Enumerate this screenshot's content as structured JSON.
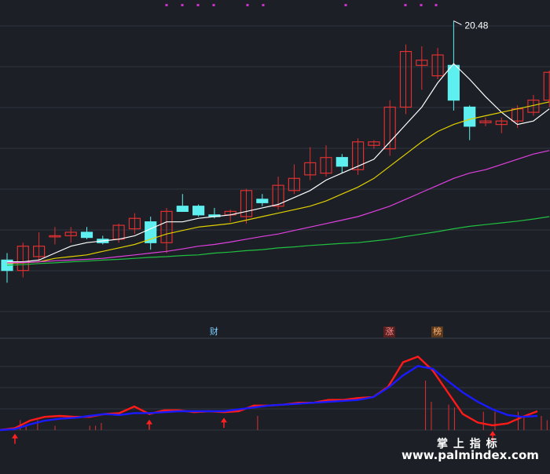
{
  "chart_data": [
    {
      "type": "candlestick",
      "title": "",
      "xlabel": "",
      "ylabel": "",
      "ylim": [
        11.6,
        20.9
      ],
      "grid": true,
      "max_label": "20.48",
      "candles": [
        {
          "o": 13.6,
          "h": 13.8,
          "l": 12.95,
          "c": 13.3
        },
        {
          "o": 13.3,
          "h": 14.1,
          "l": 13.1,
          "c": 14.0
        },
        {
          "o": 13.7,
          "h": 14.4,
          "l": 13.55,
          "c": 14.0
        },
        {
          "o": 14.3,
          "h": 14.55,
          "l": 14.05,
          "c": 14.3
        },
        {
          "o": 14.3,
          "h": 14.55,
          "l": 14.1,
          "c": 14.4
        },
        {
          "o": 14.4,
          "h": 14.55,
          "l": 14.2,
          "c": 14.25
        },
        {
          "o": 14.2,
          "h": 14.3,
          "l": 14.05,
          "c": 14.1
        },
        {
          "o": 14.2,
          "h": 14.65,
          "l": 14.1,
          "c": 14.6
        },
        {
          "o": 14.5,
          "h": 14.95,
          "l": 14.35,
          "c": 14.8
        },
        {
          "o": 14.7,
          "h": 14.85,
          "l": 13.9,
          "c": 14.1
        },
        {
          "o": 14.1,
          "h": 15.1,
          "l": 13.8,
          "c": 15.0
        },
        {
          "o": 15.15,
          "h": 15.5,
          "l": 15.0,
          "c": 15.0
        },
        {
          "o": 15.15,
          "h": 15.2,
          "l": 14.85,
          "c": 14.9
        },
        {
          "o": 14.9,
          "h": 15.1,
          "l": 14.8,
          "c": 14.85
        },
        {
          "o": 14.9,
          "h": 15.05,
          "l": 14.7,
          "c": 15.0
        },
        {
          "o": 14.85,
          "h": 15.65,
          "l": 14.65,
          "c": 15.6
        },
        {
          "o": 15.35,
          "h": 15.5,
          "l": 15.15,
          "c": 15.25
        },
        {
          "o": 15.15,
          "h": 16.0,
          "l": 15.05,
          "c": 15.75
        },
        {
          "o": 15.6,
          "h": 16.35,
          "l": 15.5,
          "c": 15.95
        },
        {
          "o": 16.05,
          "h": 16.85,
          "l": 15.9,
          "c": 16.4
        },
        {
          "o": 16.1,
          "h": 16.9,
          "l": 16.0,
          "c": 16.55
        },
        {
          "o": 16.55,
          "h": 16.65,
          "l": 16.1,
          "c": 16.3
        },
        {
          "o": 16.2,
          "h": 17.1,
          "l": 16.05,
          "c": 17.0
        },
        {
          "o": 16.9,
          "h": 17.05,
          "l": 16.8,
          "c": 17.0
        },
        {
          "o": 16.8,
          "h": 18.2,
          "l": 16.6,
          "c": 18.0
        },
        {
          "o": 18.0,
          "h": 19.8,
          "l": 17.8,
          "c": 19.6
        },
        {
          "o": 19.2,
          "h": 19.75,
          "l": 18.5,
          "c": 19.35
        },
        {
          "o": 18.9,
          "h": 19.7,
          "l": 18.8,
          "c": 19.5
        },
        {
          "o": 19.2,
          "h": 20.48,
          "l": 17.9,
          "c": 18.2
        },
        {
          "o": 18.0,
          "h": 18.05,
          "l": 17.05,
          "c": 17.45
        },
        {
          "o": 17.55,
          "h": 17.7,
          "l": 17.45,
          "c": 17.6
        },
        {
          "o": 17.5,
          "h": 17.7,
          "l": 17.25,
          "c": 17.6
        },
        {
          "o": 17.6,
          "h": 18.05,
          "l": 17.4,
          "c": 17.95
        },
        {
          "o": 17.85,
          "h": 18.35,
          "l": 17.75,
          "c": 18.2
        },
        {
          "o": 18.2,
          "h": 19.05,
          "l": 18.0,
          "c": 19.0
        }
      ],
      "series": [
        {
          "values": [
            13.55,
            13.55,
            13.6,
            13.8,
            14.0,
            14.1,
            14.15,
            14.2,
            14.3,
            14.5,
            14.7,
            14.7,
            14.8,
            14.85,
            14.9,
            15.0,
            15.1,
            15.2,
            15.4,
            15.6,
            15.9,
            16.1,
            16.3,
            16.5,
            17.0,
            17.5,
            18.0,
            18.7,
            19.25,
            18.8,
            18.3,
            17.85,
            17.5,
            17.6,
            17.95
          ],
          "color": "#ffffff"
        },
        {
          "values": [
            13.5,
            13.52,
            13.55,
            13.65,
            13.7,
            13.75,
            13.85,
            13.95,
            14.05,
            14.2,
            14.35,
            14.45,
            14.55,
            14.6,
            14.65,
            14.75,
            14.85,
            14.95,
            15.05,
            15.15,
            15.3,
            15.5,
            15.7,
            15.95,
            16.3,
            16.65,
            17.0,
            17.3,
            17.5,
            17.65,
            17.75,
            17.85,
            17.95,
            18.05,
            18.15
          ],
          "color": "#e0d000"
        },
        {
          "values": [
            13.52,
            13.53,
            13.55,
            13.58,
            13.6,
            13.62,
            13.65,
            13.7,
            13.75,
            13.8,
            13.85,
            13.92,
            14.0,
            14.05,
            14.12,
            14.2,
            14.28,
            14.35,
            14.45,
            14.55,
            14.65,
            14.75,
            14.85,
            15.0,
            15.15,
            15.35,
            15.55,
            15.75,
            15.95,
            16.1,
            16.2,
            16.35,
            16.5,
            16.65,
            16.75
          ],
          "color": "#e040e0"
        },
        {
          "values": [
            13.45,
            13.47,
            13.5,
            13.52,
            13.55,
            13.57,
            13.6,
            13.62,
            13.65,
            13.68,
            13.7,
            13.73,
            13.75,
            13.8,
            13.83,
            13.87,
            13.9,
            13.95,
            13.98,
            14.02,
            14.05,
            14.08,
            14.1,
            14.15,
            14.2,
            14.28,
            14.35,
            14.42,
            14.5,
            14.57,
            14.62,
            14.67,
            14.72,
            14.78,
            14.85
          ],
          "color": "#20c040"
        }
      ],
      "tags": [
        {
          "label": "财",
          "index": 13,
          "color": "#7fd0ff",
          "bg": "transparent"
        },
        {
          "label": "涨",
          "index": 24,
          "color": "#ff9090",
          "bg": "#5a1f1f"
        },
        {
          "label": "榜",
          "index": 27,
          "color": "#ffb070",
          "bg": "#5a3a1f"
        }
      ]
    },
    {
      "type": "line",
      "title": "",
      "ylim": [
        0,
        100
      ],
      "grid": true,
      "series": [
        {
          "values": [
            10,
            12,
            20,
            24,
            25,
            24,
            24,
            27,
            28,
            35,
            27,
            31,
            31,
            29,
            30,
            29,
            30,
            36,
            36,
            37,
            39,
            39,
            42,
            42,
            44,
            45,
            56,
            82,
            88,
            73,
            50,
            27,
            18,
            15,
            17,
            24,
            30
          ],
          "color": "#ff1a1a"
        },
        {
          "values": [
            10,
            11,
            16,
            20,
            22,
            23,
            25,
            27,
            26,
            28,
            28,
            29,
            30,
            30,
            30,
            30,
            32,
            34,
            36,
            37,
            38,
            39,
            40,
            41,
            42,
            45,
            55,
            68,
            78,
            75,
            62,
            50,
            40,
            32,
            26,
            24,
            25
          ],
          "color": "#1a1aff"
        }
      ],
      "bars": [
        2,
        0,
        0,
        14,
        6,
        0,
        14,
        0,
        0,
        6,
        0,
        0,
        0,
        0,
        0,
        6,
        6,
        10,
        0,
        0,
        0,
        0,
        0,
        0,
        0,
        0,
        0,
        0,
        0,
        0,
        0,
        0,
        0,
        0,
        0,
        0,
        0,
        0,
        0,
        0,
        0,
        0,
        0,
        0,
        20,
        0,
        0,
        0,
        0,
        0,
        0,
        0,
        0,
        0,
        0,
        0,
        0,
        0,
        0,
        0,
        0,
        0,
        0,
        0,
        0,
        0,
        0,
        0,
        0,
        0,
        0,
        0,
        0,
        70,
        40,
        0,
        0,
        36,
        32,
        0,
        0,
        0,
        0,
        26,
        0,
        26,
        0,
        0,
        0,
        26,
        20,
        0,
        0,
        20,
        14
      ],
      "signals": [
        1,
        10,
        15,
        33
      ]
    }
  ],
  "watermark": {
    "top": "掌 上 指 标",
    "bottom": "www.palmindex.com"
  },
  "colors": {
    "background": "#1c1f26",
    "grid": "#2e3440",
    "up": "#e03030",
    "down": "#5ef0f0",
    "dots": "#d030d0",
    "arrow": "#ff2020",
    "divider": "#3a404c"
  }
}
